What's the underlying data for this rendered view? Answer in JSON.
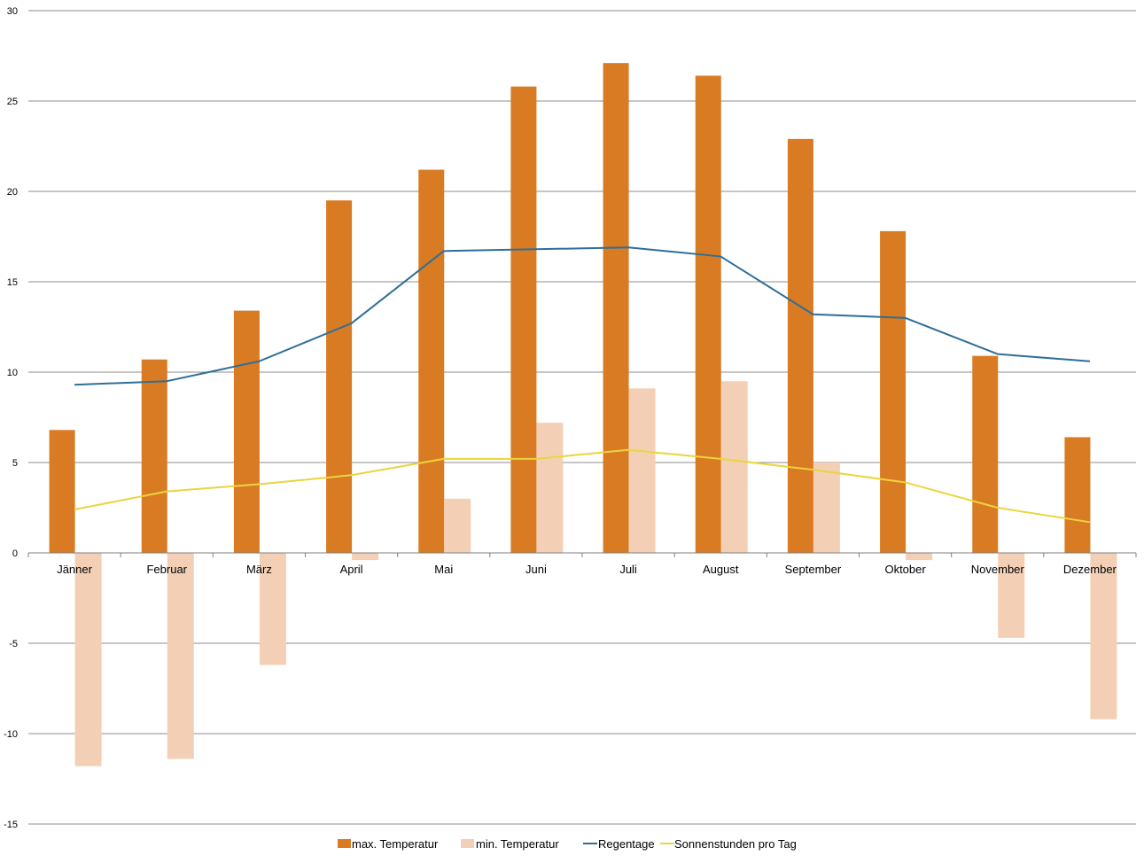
{
  "chart_data": {
    "type": "bar",
    "categories": [
      "Jänner",
      "Februar",
      "März",
      "April",
      "Mai",
      "Juni",
      "Juli",
      "August",
      "September",
      "Oktober",
      "November",
      "Dezember"
    ],
    "series": [
      {
        "name": "max. Temperatur",
        "type": "bar",
        "color": "#d97b22",
        "values": [
          6.8,
          10.7,
          13.4,
          19.5,
          21.2,
          25.8,
          27.1,
          26.4,
          22.9,
          17.8,
          10.9,
          6.4
        ]
      },
      {
        "name": "min. Temperatur",
        "type": "bar",
        "color": "#f3d0b5",
        "values": [
          -11.8,
          -11.4,
          -6.2,
          -0.4,
          3.0,
          7.2,
          9.1,
          9.5,
          5.0,
          -0.4,
          -4.7,
          -9.2
        ]
      },
      {
        "name": "Regentage",
        "type": "line",
        "color": "#2e6e99",
        "values": [
          9.3,
          9.5,
          10.6,
          12.7,
          16.7,
          16.8,
          16.9,
          16.4,
          13.2,
          13.0,
          11.0,
          10.6
        ]
      },
      {
        "name": "Sonnenstunden pro Tag",
        "type": "line",
        "color": "#ead53e",
        "values": [
          2.4,
          3.4,
          3.8,
          4.3,
          5.2,
          5.2,
          5.7,
          5.2,
          4.6,
          3.9,
          2.5,
          1.7
        ]
      }
    ],
    "yticks": [
      "30",
      "25",
      "20",
      "15",
      "10",
      "5",
      "0",
      "-5",
      "-10",
      "-15"
    ],
    "ylim": [
      -15,
      30
    ],
    "grid": true,
    "legend_position": "bottom"
  }
}
